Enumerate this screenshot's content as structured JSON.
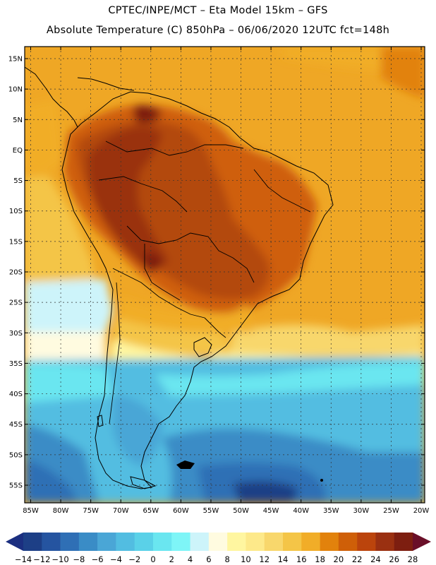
{
  "header": {
    "line1": "CPTEC/INPE/MCT –  Eta Model 15km – GFS",
    "line2": "Absolute Temperature (C) 850hPa – 06/06/2020 12UTC fct=148h"
  },
  "map": {
    "lat_labels": [
      "15N",
      "10N",
      "5N",
      "EQ",
      "5S",
      "10S",
      "15S",
      "20S",
      "25S",
      "30S",
      "35S",
      "40S",
      "45S",
      "50S",
      "55S"
    ],
    "lon_labels": [
      "85W",
      "80W",
      "75W",
      "70W",
      "65W",
      "60W",
      "55W",
      "50W",
      "45W",
      "40W",
      "35W",
      "30W",
      "25W",
      "20W"
    ],
    "colors": {
      "frame": "#000000",
      "coast": "#000000",
      "gridline": "#333333",
      "ocean_tropical": "#efa725",
      "land_hot": "#b3480e"
    }
  },
  "colorbar": {
    "labels": [
      "-14",
      "-12",
      "-10",
      "-8",
      "-6",
      "-4",
      "-2",
      "0",
      "2",
      "4",
      "6",
      "8",
      "10",
      "12",
      "14",
      "16",
      "18",
      "20",
      "22",
      "24",
      "26",
      "28"
    ],
    "colors": [
      "#1d3f86",
      "#2554a0",
      "#2f6fb5",
      "#3a8cc6",
      "#4aa6d6",
      "#52bde1",
      "#5ad1e8",
      "#6ae6f0",
      "#7ef5f7",
      "#cdf4fa",
      "#fffbe0",
      "#fff6a0",
      "#fde98a",
      "#f8d76c",
      "#f4c547",
      "#f1ad28",
      "#e2820c",
      "#cf5f08",
      "#bb440c",
      "#9a3011",
      "#7d1e10"
    ],
    "low_color": "#1b2f80",
    "high_color": "#6a0f28"
  }
}
